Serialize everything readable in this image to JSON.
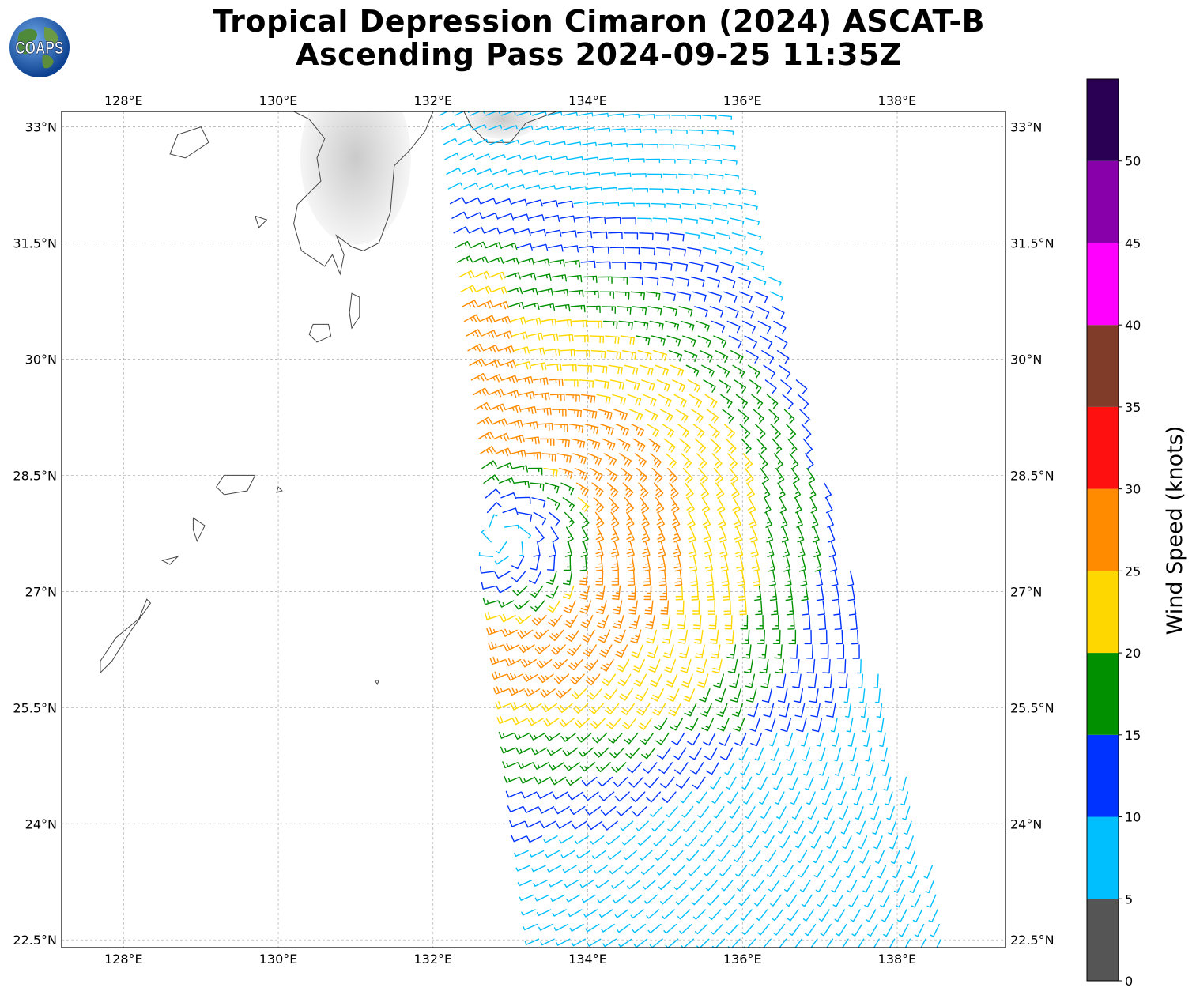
{
  "title": {
    "line1": "Tropical Depression Cimaron (2024) ASCAT-B",
    "line2": "Ascending Pass 2024-09-25 11:35Z"
  },
  "logo": {
    "text": "COAPS",
    "icon": "globe-logo-icon"
  },
  "map": {
    "lon_range": [
      127.2,
      139.4
    ],
    "lat_range": [
      22.4,
      33.2
    ],
    "lon_ticks": [
      {
        "value": 128,
        "label": "128°E"
      },
      {
        "value": 130,
        "label": "130°E"
      },
      {
        "value": 132,
        "label": "132°E"
      },
      {
        "value": 134,
        "label": "134°E"
      },
      {
        "value": 136,
        "label": "136°E"
      },
      {
        "value": 138,
        "label": "138°E"
      }
    ],
    "lat_ticks": [
      {
        "value": 33,
        "label": "33°N"
      },
      {
        "value": 31.5,
        "label": "31.5°N"
      },
      {
        "value": 30,
        "label": "30°N"
      },
      {
        "value": 28.5,
        "label": "28.5°N"
      },
      {
        "value": 27,
        "label": "27°N"
      },
      {
        "value": 25.5,
        "label": "25.5°N"
      },
      {
        "value": 24,
        "label": "24°N"
      },
      {
        "value": 22.5,
        "label": "22.5°N"
      }
    ],
    "gridlines": true,
    "storm_center": {
      "lon": 132.9,
      "lat": 27.7
    },
    "swath_corners": {
      "northwest": {
        "lon": 132.0,
        "lat": 33.2
      },
      "northeast": {
        "lon": 135.8,
        "lat": 33.2
      },
      "southeast": {
        "lon": 138.8,
        "lat": 22.4
      },
      "southwest": {
        "lon": 133.3,
        "lat": 22.4
      }
    }
  },
  "colorbar": {
    "label": "Wind Speed (knots)",
    "ticks": [
      "0",
      "5",
      "10",
      "15",
      "20",
      "25",
      "30",
      "35",
      "40",
      "45",
      "50"
    ],
    "bins": [
      {
        "min": 0,
        "max": 5,
        "color": "#555555"
      },
      {
        "min": 5,
        "max": 10,
        "color": "#00bfff"
      },
      {
        "min": 10,
        "max": 15,
        "color": "#0033ff"
      },
      {
        "min": 15,
        "max": 20,
        "color": "#009000"
      },
      {
        "min": 20,
        "max": 25,
        "color": "#ffd700"
      },
      {
        "min": 25,
        "max": 30,
        "color": "#ff8c00"
      },
      {
        "min": 30,
        "max": 35,
        "color": "#ff1010"
      },
      {
        "min": 35,
        "max": 40,
        "color": "#803c28"
      },
      {
        "min": 40,
        "max": 45,
        "color": "#ff00ff"
      },
      {
        "min": 45,
        "max": 50,
        "color": "#8800aa"
      },
      {
        "min": 50,
        "max": 55,
        "color": "#2a0055"
      }
    ]
  }
}
